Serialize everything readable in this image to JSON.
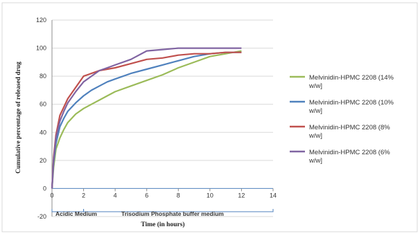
{
  "chart_data": {
    "type": "line",
    "title": "",
    "xlabel": "Time (in hours)",
    "ylabel": "Cumulative percentage of released drug",
    "xlim": [
      0,
      14
    ],
    "ylim": [
      -20,
      120
    ],
    "xticks": [
      "0",
      "2",
      "4",
      "6",
      "8",
      "10",
      "12",
      "14"
    ],
    "yticks": [
      "-20",
      "0",
      "20",
      "40",
      "60",
      "80",
      "100",
      "120"
    ],
    "grid": "horizontal",
    "legend_position": "right",
    "annotations": {
      "acidic": "Acidic Medium",
      "buffer": "Trisodium Phosphate buffer medium"
    },
    "series": [
      {
        "name_lines": [
          "Melvinidin-HPMC 2208 (14%",
          "w/w]"
        ],
        "color": "#9bbb59",
        "x": [
          0,
          0.1,
          0.25,
          0.5,
          0.75,
          1,
          1.5,
          2,
          2.5,
          3,
          3.5,
          4,
          5,
          6,
          7,
          8,
          9,
          10,
          11,
          12
        ],
        "y": [
          0,
          15,
          28,
          36,
          42,
          47,
          53,
          57,
          60,
          63,
          66,
          69,
          73,
          77,
          81,
          86,
          90,
          94,
          96,
          98
        ]
      },
      {
        "name_lines": [
          "Melvinidin-HPMC 2208 (10%",
          "w/w]"
        ],
        "color": "#4f81bd",
        "x": [
          0,
          0.1,
          0.25,
          0.5,
          0.75,
          1,
          1.5,
          2,
          2.5,
          3,
          3.5,
          4,
          5,
          6,
          7,
          8,
          9,
          10,
          11,
          12
        ],
        "y": [
          0,
          18,
          32,
          44,
          50,
          55,
          61,
          66,
          70,
          73,
          76,
          78,
          82,
          85,
          88,
          91,
          94,
          96,
          97,
          97
        ]
      },
      {
        "name_lines": [
          "Melvinidin-HPMC 2208 (8%",
          "w/w]"
        ],
        "color": "#c0504d",
        "x": [
          0,
          0.1,
          0.25,
          0.5,
          0.75,
          1,
          1.5,
          2,
          2.5,
          3,
          3.5,
          4,
          5,
          6,
          7,
          8,
          9,
          10,
          11,
          12
        ],
        "y": [
          0,
          22,
          38,
          52,
          58,
          64,
          72,
          80,
          82,
          84,
          85,
          86,
          89,
          92,
          93,
          95,
          96,
          96,
          97,
          97
        ]
      },
      {
        "name_lines": [
          "Melvinidin-HPMC 2208 (6%",
          "w/w]"
        ],
        "color": "#8064a2",
        "x": [
          0,
          0.1,
          0.25,
          0.5,
          0.75,
          1,
          1.5,
          2,
          2.5,
          3,
          3.5,
          4,
          5,
          6,
          7,
          8,
          9,
          10,
          11,
          12
        ],
        "y": [
          0,
          20,
          36,
          48,
          55,
          61,
          69,
          76,
          80,
          84,
          86,
          88,
          92,
          98,
          99,
          100,
          100,
          100,
          100,
          100
        ]
      }
    ]
  }
}
